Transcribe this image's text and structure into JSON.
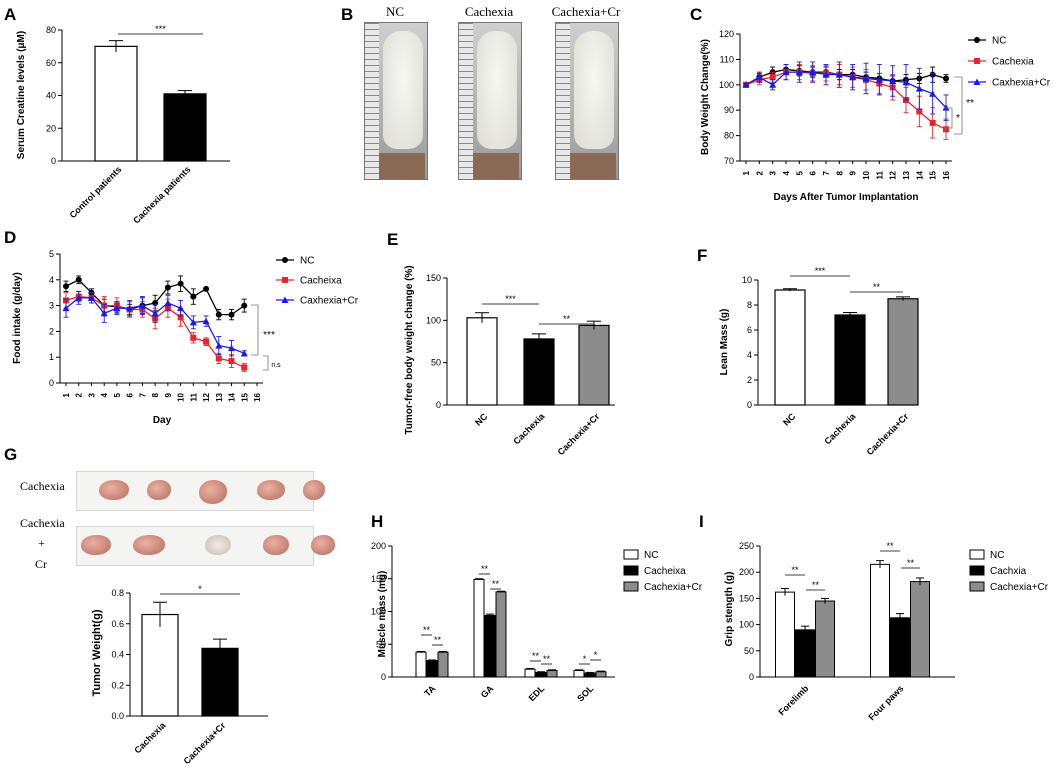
{
  "colors": {
    "nc": "#000000",
    "cachexia": "#e8262b",
    "cr": "#1a1ae6",
    "bar_white": "#ffffff",
    "bar_black": "#000000",
    "bar_gray": "#8c8c8c"
  },
  "panels": {
    "A": {
      "letter": "A",
      "ylabel": "Serum Creatine levels (μM)",
      "yticks": [
        "0",
        "20",
        "40",
        "60",
        "80"
      ],
      "categories": [
        "Control patients",
        "Cachexia patients"
      ],
      "sig": "***"
    },
    "B": {
      "letter": "B",
      "labels": [
        "NC",
        "Cachexia",
        "Cachexia+Cr"
      ]
    },
    "C": {
      "letter": "C",
      "ylabel": "Body Weight Change(%)",
      "xlabel": "Days After Tumor Implantation",
      "yticks": [
        "70",
        "80",
        "90",
        "100",
        "110",
        "120"
      ],
      "xticks": [
        "1",
        "2",
        "3",
        "4",
        "5",
        "6",
        "7",
        "8",
        "9",
        "10",
        "11",
        "12",
        "13",
        "14",
        "15",
        "16"
      ],
      "legend": [
        "NC",
        "Cachexia",
        "Caxhexia+Cr"
      ],
      "sig": [
        "**",
        "*"
      ]
    },
    "D": {
      "letter": "D",
      "ylabel": "Food intake (g/day)",
      "xlabel": "Day",
      "yticks": [
        "0",
        "1",
        "2",
        "3",
        "4",
        "5"
      ],
      "xticks": [
        "1",
        "2",
        "3",
        "4",
        "5",
        "6",
        "7",
        "8",
        "9",
        "10",
        "11",
        "12",
        "13",
        "14",
        "15",
        "16"
      ],
      "legend": [
        "NC",
        "Cacheixa",
        "Caxhexia+Cr"
      ],
      "sig": [
        "***",
        "n.s"
      ]
    },
    "E": {
      "letter": "E",
      "ylabel": "Tumor-free body weight change (%)",
      "yticks": [
        "0",
        "50",
        "100",
        "150"
      ],
      "categories": [
        "NC",
        "Cachexia",
        "Cachexia+Cr"
      ],
      "sig": [
        "***",
        "**"
      ]
    },
    "F": {
      "letter": "F",
      "ylabel": "Lean Mass (g)",
      "yticks": [
        "0",
        "2",
        "4",
        "6",
        "8",
        "10"
      ],
      "categories": [
        "NC",
        "Cachexia",
        "Cachexia+Cr"
      ],
      "sig": [
        "***",
        "**"
      ]
    },
    "G": {
      "letter": "G",
      "row_labels": [
        "Cachexia",
        "Cachexia",
        "+",
        "Cr"
      ],
      "ylabel": "Tumor Weight(g)",
      "yticks": [
        "0.0",
        "0.2",
        "0.4",
        "0.6",
        "0.8"
      ],
      "categories": [
        "Cachexia",
        "Cachexia+Cr"
      ],
      "sig": "*"
    },
    "H": {
      "letter": "H",
      "ylabel": "Muscle mass (mg)",
      "yticks": [
        "0",
        "50",
        "100",
        "150",
        "200"
      ],
      "groups": [
        "TA",
        "GA",
        "EDL",
        "SOL"
      ],
      "legend": [
        "NC",
        "Cacheixa",
        "Cachexia+Cr"
      ],
      "sig": [
        "**",
        "**",
        "**",
        "**",
        "**",
        "**",
        "*",
        "*"
      ]
    },
    "I": {
      "letter": "I",
      "ylabel": "Grip stength (g)",
      "yticks": [
        "0",
        "50",
        "100",
        "150",
        "200",
        "250"
      ],
      "groups": [
        "Forelimb",
        "Four paws"
      ],
      "legend": [
        "NC",
        "Cachxia",
        "Cachexia+Cr"
      ],
      "sig": [
        "**",
        "**",
        "**",
        "**"
      ]
    }
  },
  "chart_data": [
    {
      "panel": "A",
      "type": "bar",
      "categories": [
        "Control patients",
        "Cachexia patients"
      ],
      "values": [
        70,
        41
      ],
      "errors": [
        3.5,
        2
      ],
      "ylim": [
        0,
        80
      ],
      "ylabel": "Serum Creatine levels (μM)"
    },
    {
      "panel": "C",
      "type": "line",
      "ylim": [
        70,
        120
      ],
      "x": [
        1,
        2,
        3,
        4,
        5,
        6,
        7,
        8,
        9,
        10,
        11,
        12,
        13,
        14,
        15,
        16
      ],
      "series": [
        {
          "name": "NC",
          "values": [
            100,
            103,
            105,
            106,
            105.5,
            105,
            105,
            104,
            104,
            103,
            102.5,
            101.5,
            102,
            102.5,
            104,
            102.5
          ],
          "errors": [
            0.5,
            1.5,
            2,
            2,
            2,
            2,
            2,
            2,
            2,
            2,
            2,
            2,
            2,
            2,
            3,
            1.5
          ]
        },
        {
          "name": "Cachexia",
          "values": [
            100,
            102,
            103,
            105,
            105,
            104.5,
            104.5,
            104,
            103,
            102,
            100.5,
            99,
            94,
            89.5,
            85,
            82.5
          ],
          "errors": [
            0.5,
            2,
            2,
            3,
            3,
            3,
            3,
            4,
            4,
            4,
            4,
            5,
            5,
            6,
            6,
            4
          ]
        },
        {
          "name": "Caxhexia+Cr",
          "values": [
            100,
            103,
            100,
            105,
            105,
            105,
            104,
            104,
            103,
            102.5,
            102,
            101.5,
            101,
            98.5,
            96.5,
            91
          ],
          "errors": [
            0.5,
            2,
            2,
            3,
            4,
            4,
            4,
            5,
            5,
            6,
            6,
            6,
            7,
            8,
            8,
            5
          ]
        }
      ],
      "xlabel": "Days After Tumor Implantation",
      "ylabel": "Body Weight Change(%)"
    },
    {
      "panel": "D",
      "type": "line",
      "ylim": [
        0,
        5
      ],
      "x": [
        1,
        2,
        3,
        4,
        5,
        6,
        7,
        8,
        9,
        10,
        11,
        12,
        13,
        14,
        15,
        16
      ],
      "series": [
        {
          "name": "NC",
          "values": [
            3.75,
            4.0,
            3.5,
            3.0,
            2.95,
            2.85,
            3.0,
            3.1,
            3.7,
            3.85,
            3.35,
            3.65,
            2.65,
            2.65,
            3.0,
            null
          ],
          "errors": [
            0.2,
            0.15,
            0.15,
            0.25,
            0.2,
            0.2,
            0.3,
            0.3,
            0.25,
            0.3,
            0.3,
            0.0,
            0.2,
            0.2,
            0.25,
            null
          ]
        },
        {
          "name": "Cacheixa",
          "values": [
            3.2,
            3.35,
            3.3,
            3.0,
            3.0,
            2.85,
            2.85,
            2.5,
            2.9,
            2.55,
            1.75,
            1.6,
            0.95,
            0.85,
            0.6,
            null
          ],
          "errors": [
            0.3,
            0.2,
            0.2,
            0.35,
            0.3,
            0.3,
            0.3,
            0.4,
            0.35,
            0.35,
            0.2,
            0.15,
            0.2,
            0.25,
            0.15,
            null
          ]
        },
        {
          "name": "Caxhexia+Cr",
          "values": [
            2.9,
            3.3,
            3.3,
            2.7,
            2.9,
            2.9,
            3.0,
            2.7,
            3.1,
            2.9,
            2.35,
            2.4,
            1.45,
            1.35,
            1.15,
            null
          ],
          "errors": [
            0.35,
            0.25,
            0.2,
            0.35,
            0.25,
            0.3,
            0.35,
            0.35,
            0.3,
            0.3,
            0.25,
            0.2,
            0.35,
            0.3,
            0.1,
            null
          ]
        }
      ],
      "xlabel": "Day",
      "ylabel": "Food intake (g/day)"
    },
    {
      "panel": "E",
      "type": "bar",
      "categories": [
        "NC",
        "Cachexia",
        "Cachexia+Cr"
      ],
      "values": [
        103,
        78,
        94
      ],
      "errors": [
        6,
        6,
        5
      ],
      "ylim": [
        0,
        150
      ],
      "ylabel": "Tumor-free body weight change (%)"
    },
    {
      "panel": "F",
      "type": "bar",
      "categories": [
        "NC",
        "Cachexia",
        "Cachexia+Cr"
      ],
      "values": [
        9.2,
        7.2,
        8.5
      ],
      "errors": [
        0.1,
        0.2,
        0.15
      ],
      "ylim": [
        0,
        10
      ],
      "ylabel": "Lean Mass (g)"
    },
    {
      "panel": "G",
      "type": "bar",
      "categories": [
        "Cachexia",
        "Cachexia+Cr"
      ],
      "values": [
        0.66,
        0.44
      ],
      "errors": [
        0.08,
        0.06
      ],
      "ylim": [
        0,
        0.8
      ],
      "ylabel": "Tumor Weight(g)"
    },
    {
      "panel": "H",
      "type": "bar",
      "categories": [
        "TA",
        "GA",
        "EDL",
        "SOL"
      ],
      "ylim": [
        0,
        200
      ],
      "ylabel": "Muscle mass (mg)",
      "series": [
        {
          "name": "NC",
          "values": [
            38,
            149,
            12,
            10
          ],
          "errors": [
            1,
            1,
            1,
            1
          ]
        },
        {
          "name": "Cacheixa",
          "values": [
            25,
            94,
            7,
            6
          ],
          "errors": [
            1,
            2,
            1,
            1
          ]
        },
        {
          "name": "Cachexia+Cr",
          "values": [
            38,
            130,
            10,
            8
          ],
          "errors": [
            1,
            1,
            1,
            1
          ]
        }
      ]
    },
    {
      "panel": "I",
      "type": "bar",
      "categories": [
        "Forelimb",
        "Four paws"
      ],
      "ylim": [
        0,
        250
      ],
      "ylabel": "Grip stength (g)",
      "series": [
        {
          "name": "NC",
          "values": [
            162,
            215
          ],
          "errors": [
            7,
            7
          ]
        },
        {
          "name": "Cachxia",
          "values": [
            90,
            113
          ],
          "errors": [
            7,
            8
          ]
        },
        {
          "name": "Cachexia+Cr",
          "values": [
            145,
            182
          ],
          "errors": [
            5,
            7
          ]
        }
      ]
    }
  ]
}
